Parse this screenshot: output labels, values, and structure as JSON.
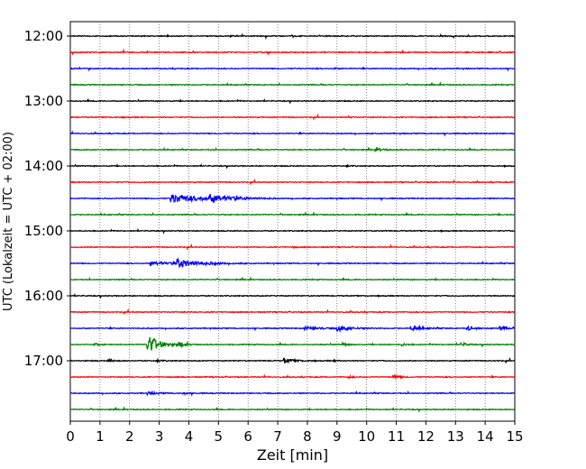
{
  "chart_data": {
    "type": "line",
    "subtype": "helicorder",
    "xlabel": "Zeit  [min]",
    "ylabel": "UTC (Lokalzeit = UTC + 02:00)",
    "xlim": [
      0,
      15
    ],
    "x_ticks": [
      0,
      1,
      2,
      3,
      4,
      5,
      6,
      7,
      8,
      9,
      10,
      11,
      12,
      13,
      14,
      15
    ],
    "x_grid": "dotted vertical lines at each minute",
    "y_ticks": [
      "12:00",
      "13:00",
      "14:00",
      "15:00",
      "16:00",
      "17:00"
    ],
    "trace_interval_minutes": 15,
    "start_time": "12:00",
    "trace_colors": [
      "#000000",
      "#ff0000",
      "#0000ff",
      "#008000"
    ],
    "traces": [
      {
        "start": "12:00",
        "color": "#000000",
        "events": [
          {
            "t": 5.4,
            "amp": 0.25,
            "dur": 0.3
          },
          {
            "t": 7.5,
            "amp": 0.35,
            "dur": 0.15
          }
        ]
      },
      {
        "start": "12:15",
        "color": "#ff0000",
        "events": []
      },
      {
        "start": "12:30",
        "color": "#0000ff",
        "events": [
          {
            "t": 8.9,
            "amp": 0.3,
            "dur": 0.2
          }
        ]
      },
      {
        "start": "12:45",
        "color": "#008000",
        "events": []
      },
      {
        "start": "13:00",
        "color": "#000000",
        "events": []
      },
      {
        "start": "13:15",
        "color": "#ff0000",
        "events": [
          {
            "t": 9.4,
            "amp": 0.3,
            "dur": 0.15
          }
        ]
      },
      {
        "start": "13:30",
        "color": "#0000ff",
        "events": []
      },
      {
        "start": "13:45",
        "color": "#008000",
        "events": [
          {
            "t": 10.3,
            "amp": 0.45,
            "dur": 0.6
          }
        ]
      },
      {
        "start": "14:00",
        "color": "#000000",
        "events": [
          {
            "t": 9.3,
            "amp": 0.3,
            "dur": 0.2
          }
        ]
      },
      {
        "start": "14:15",
        "color": "#ff0000",
        "events": []
      },
      {
        "start": "14:30",
        "color": "#0000ff",
        "events": [
          {
            "t": 3.4,
            "amp": 1.6,
            "dur": 2.2
          },
          {
            "t": 4.7,
            "amp": 1.2,
            "dur": 1.4
          }
        ]
      },
      {
        "start": "14:45",
        "color": "#008000",
        "events": []
      },
      {
        "start": "15:00",
        "color": "#000000",
        "events": []
      },
      {
        "start": "15:15",
        "color": "#ff0000",
        "events": [
          {
            "t": 7.5,
            "amp": 0.35,
            "dur": 0.1
          }
        ]
      },
      {
        "start": "15:30",
        "color": "#0000ff",
        "events": [
          {
            "t": 2.7,
            "amp": 0.7,
            "dur": 1.5
          },
          {
            "t": 3.6,
            "amp": 1.5,
            "dur": 1.6
          }
        ]
      },
      {
        "start": "15:45",
        "color": "#008000",
        "events": []
      },
      {
        "start": "16:00",
        "color": "#000000",
        "events": []
      },
      {
        "start": "16:15",
        "color": "#ff0000",
        "events": []
      },
      {
        "start": "16:30",
        "color": "#0000ff",
        "events": [
          {
            "t": 7.9,
            "amp": 0.5,
            "dur": 1.2
          },
          {
            "t": 9.0,
            "amp": 1.0,
            "dur": 0.8
          },
          {
            "t": 11.5,
            "amp": 0.9,
            "dur": 0.7
          },
          {
            "t": 13.4,
            "amp": 0.7,
            "dur": 0.6
          },
          {
            "t": 14.5,
            "amp": 0.6,
            "dur": 0.5
          }
        ]
      },
      {
        "start": "16:45",
        "color": "#008000",
        "events": [
          {
            "t": 0.8,
            "amp": 0.5,
            "dur": 0.3
          },
          {
            "t": 2.6,
            "amp": 3.6,
            "dur": 0.8
          },
          {
            "t": 3.7,
            "amp": 0.6,
            "dur": 0.4
          },
          {
            "t": 9.2,
            "amp": 0.5,
            "dur": 0.3
          },
          {
            "t": 11.2,
            "amp": 0.4,
            "dur": 0.3
          },
          {
            "t": 13.2,
            "amp": 0.7,
            "dur": 0.3
          }
        ]
      },
      {
        "start": "17:00",
        "color": "#000000",
        "events": [
          {
            "t": 1.3,
            "amp": 0.5,
            "dur": 0.3
          },
          {
            "t": 2.9,
            "amp": 0.4,
            "dur": 0.3
          },
          {
            "t": 7.2,
            "amp": 0.8,
            "dur": 0.7
          },
          {
            "t": 8.9,
            "amp": 0.3,
            "dur": 0.2
          }
        ]
      },
      {
        "start": "17:15",
        "color": "#ff0000",
        "events": [
          {
            "t": 9.4,
            "amp": 0.35,
            "dur": 0.3
          },
          {
            "t": 10.9,
            "amp": 0.7,
            "dur": 0.4
          }
        ]
      },
      {
        "start": "17:30",
        "color": "#0000ff",
        "events": [
          {
            "t": 2.6,
            "amp": 0.6,
            "dur": 0.6
          },
          {
            "t": 3.8,
            "amp": 0.35,
            "dur": 0.4
          }
        ]
      },
      {
        "start": "17:45",
        "color": "#008000",
        "events": []
      }
    ]
  }
}
